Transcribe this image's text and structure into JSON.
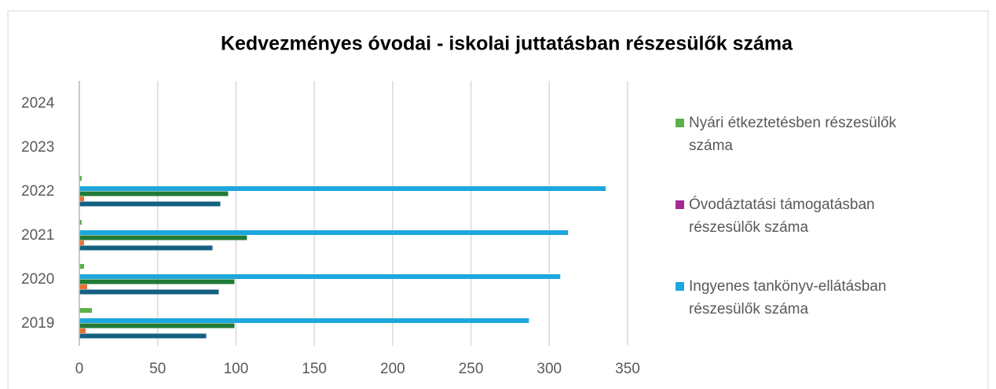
{
  "chart_data": {
    "type": "bar",
    "orientation": "horizontal",
    "title": "Kedvezményes óvodai - iskolai juttatásban részesülők száma",
    "categories": [
      "2019",
      "2020",
      "2021",
      "2022",
      "2023",
      "2024"
    ],
    "series": [
      {
        "name": "Nyári étkeztetésben részesülők száma",
        "color": "#5bb14a",
        "values": [
          8,
          3,
          1.5,
          1.5,
          null,
          null
        ]
      },
      {
        "name": "Óvodáztatási támogatásban részesülők száma",
        "color": "#a02b93",
        "values": [
          null,
          null,
          null,
          null,
          null,
          null
        ]
      },
      {
        "name": "Ingyenes tankönyv-ellátásban részesülők száma",
        "color": "#1ea7dc",
        "values": [
          287,
          307,
          312,
          336,
          null,
          null
        ]
      },
      {
        "color": "#217a35",
        "values": [
          99,
          99,
          107,
          95,
          null,
          null
        ]
      },
      {
        "color": "#e97132",
        "values": [
          4,
          5,
          3,
          3,
          null,
          null
        ]
      },
      {
        "color": "#156082",
        "values": [
          81,
          89,
          85,
          90,
          null,
          null
        ]
      }
    ],
    "xlim": [
      0,
      350
    ],
    "xticks": [
      0,
      50,
      100,
      150,
      200,
      250,
      300,
      350
    ],
    "grid": true,
    "legend": "right"
  }
}
